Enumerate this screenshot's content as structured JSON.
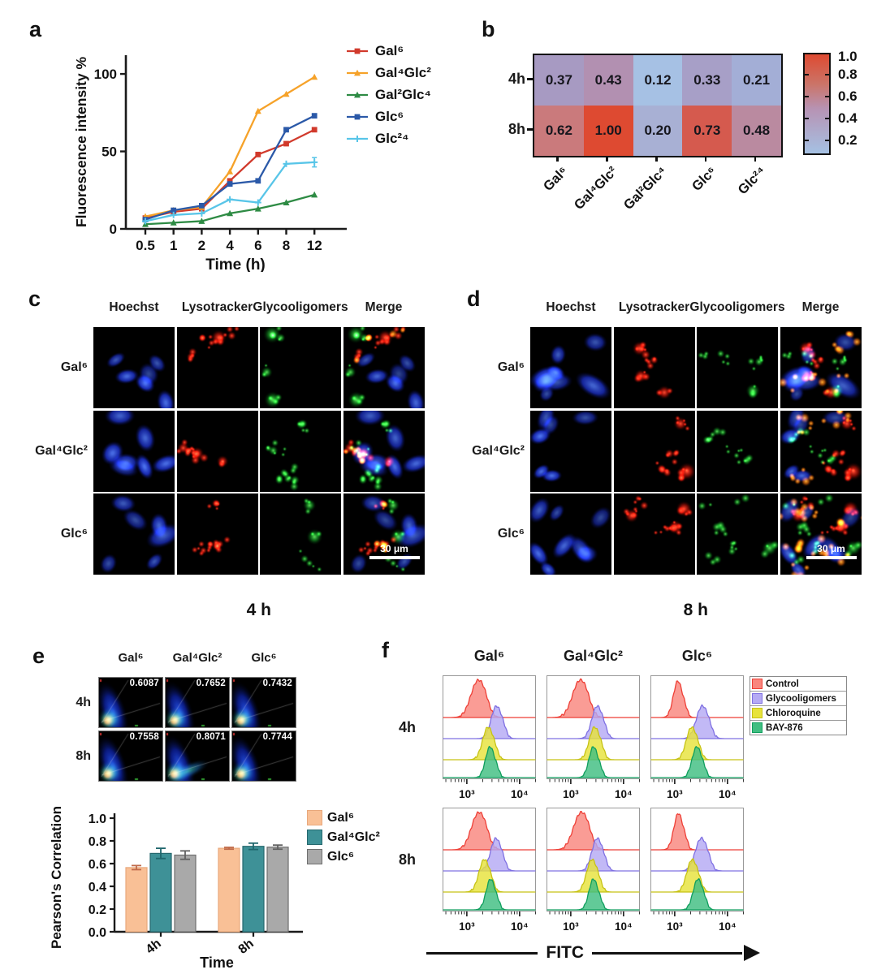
{
  "panel_letters": {
    "a": "a",
    "b": "b",
    "c": "c",
    "d": "d",
    "e": "e",
    "f": "f"
  },
  "chart_data": [
    {
      "id": "a",
      "type": "line",
      "xlabel": "Time (h)",
      "ylabel": "Fluorescence intensity %",
      "categories": [
        "0.5",
        "1",
        "2",
        "4",
        "6",
        "8",
        "12"
      ],
      "ylim": [
        0,
        110
      ],
      "yticks": [
        0,
        50,
        100
      ],
      "legend_position": "right",
      "series": [
        {
          "name": "Gal⁶",
          "color": "#d13a2c",
          "marker": "square",
          "values": [
            7,
            11,
            13,
            31,
            48,
            55,
            64
          ]
        },
        {
          "name": "Gal⁴Glc²",
          "color": "#f6a229",
          "marker": "triangle",
          "values": [
            8,
            12,
            14,
            37,
            76,
            87,
            98
          ]
        },
        {
          "name": "Gal²Glc⁴",
          "color": "#2e8b44",
          "marker": "triangle",
          "values": [
            3,
            4,
            5,
            10,
            13,
            17,
            22
          ]
        },
        {
          "name": "Glc⁶",
          "color": "#2b59a8",
          "marker": "square",
          "values": [
            6,
            12,
            15,
            29,
            31,
            64,
            73
          ]
        },
        {
          "name": "Glc²⁴",
          "color": "#58c5e8",
          "marker": "cross",
          "values": [
            5,
            9,
            10,
            19,
            17,
            42,
            43
          ],
          "yerr_last": 3
        }
      ]
    },
    {
      "id": "b",
      "type": "heatmap",
      "rows": [
        "4h",
        "8h"
      ],
      "columns": [
        "Gal⁶",
        "Gal⁴Glc²",
        "Gal²Glc⁴",
        "Glc⁶",
        "Glc²⁴"
      ],
      "values": [
        [
          0.37,
          0.43,
          0.12,
          0.33,
          0.21
        ],
        [
          0.62,
          1.0,
          0.2,
          0.73,
          0.48
        ]
      ],
      "cell_colors": [
        [
          "#a79ac2",
          "#b290b1",
          "#a6c1e4",
          "#a79fc7",
          "#a3aed6"
        ],
        [
          "#ca7a7c",
          "#de4a31",
          "#a8b0d4",
          "#d55a4e",
          "#ba8aa0"
        ]
      ],
      "colorbar": {
        "ticks": [
          "1.0",
          "0.8",
          "0.6",
          "0.4",
          "0.2"
        ],
        "range": [
          0.1,
          1.0
        ],
        "stops": [
          "#de4a31",
          "#cb7468",
          "#b793b4",
          "#a5c1e3"
        ]
      }
    },
    {
      "id": "e_scatter",
      "type": "heatscatter-grid",
      "columns": [
        "Gal⁶",
        "Gal⁴Glc²",
        "Glc⁶"
      ],
      "rows": [
        "4h",
        "8h"
      ],
      "values": [
        [
          "0.6087",
          "0.7652",
          "0.7432"
        ],
        [
          "0.7558",
          "0.8071",
          "0.7744"
        ]
      ]
    },
    {
      "id": "e_bar",
      "type": "bar",
      "xlabel": "Time",
      "ylabel": "Pearson's Correlation",
      "categories": [
        "4h",
        "8h"
      ],
      "ylim": [
        0,
        1.0
      ],
      "yticks": [
        "0.0",
        "0.2",
        "0.4",
        "0.6",
        "0.8",
        "1.0"
      ],
      "series": [
        {
          "name": "Gal⁶",
          "color": "#f9c096",
          "edge": "#e8a87c",
          "err_color": "#c06a4a",
          "values": [
            0.565,
            0.735
          ],
          "errors": [
            0.018,
            0.008
          ]
        },
        {
          "name": "Gal⁴Glc²",
          "color": "#3e9197",
          "edge": "#26686e",
          "err_color": "#1f666c",
          "values": [
            0.69,
            0.752
          ],
          "errors": [
            0.045,
            0.028
          ]
        },
        {
          "name": "Glc⁶",
          "color": "#a9a9a9",
          "edge": "#6f6f6f",
          "err_color": "#616161",
          "values": [
            0.675,
            0.745
          ],
          "errors": [
            0.037,
            0.018
          ]
        }
      ]
    },
    {
      "id": "f",
      "type": "flow-histograms",
      "columns": [
        "Gal⁶",
        "Gal⁴Glc²",
        "Glc⁶"
      ],
      "rows": [
        "4h",
        "8h"
      ],
      "xlabel": "FITC",
      "xticks": [
        "10³",
        "10⁴"
      ],
      "xlog_range": [
        2.54,
        4.31
      ],
      "series": [
        {
          "name": "Control",
          "fill": "#f9867e",
          "stroke": "#ee3f36"
        },
        {
          "name": "Glycooligomers",
          "fill": "#b5aaf4",
          "stroke": "#7f70e2"
        },
        {
          "name": "Chloroquine",
          "fill": "#e7e33c",
          "stroke": "#c6c214"
        },
        {
          "name": "BAY-876",
          "fill": "#40be81",
          "stroke": "#0f9e5d"
        }
      ],
      "panels": {
        "4h": {
          "Gal⁶": {
            "peaks": [
              3.21,
              3.56,
              3.4,
              3.44
            ],
            "sigmas": [
              0.135,
              0.1,
              0.1,
              0.085
            ]
          },
          "Gal⁴Glc²": {
            "peaks": [
              3.17,
              3.5,
              3.45,
              3.43
            ],
            "sigmas": [
              0.14,
              0.1,
              0.1,
              0.085
            ]
          },
          "Glc⁶": {
            "peaks": [
              3.06,
              3.52,
              3.32,
              3.42
            ],
            "sigmas": [
              0.085,
              0.11,
              0.1,
              0.09
            ]
          }
        },
        "8h": {
          "Gal⁶": {
            "peaks": [
              3.22,
              3.55,
              3.33,
              3.45
            ],
            "sigmas": [
              0.135,
              0.1,
              0.1,
              0.085
            ]
          },
          "Gal⁴Glc²": {
            "peaks": [
              3.19,
              3.5,
              3.4,
              3.43
            ],
            "sigmas": [
              0.14,
              0.1,
              0.1,
              0.085
            ]
          },
          "Glc⁶": {
            "peaks": [
              3.07,
              3.5,
              3.33,
              3.44
            ],
            "sigmas": [
              0.085,
              0.11,
              0.1,
              0.09
            ]
          }
        }
      }
    }
  ],
  "microscopy": {
    "column_headers": [
      "Hoechst",
      "Lysotracker",
      "Glycooligomers",
      "Merge"
    ],
    "row_labels": [
      "Gal⁶",
      "Gal⁴Glc²",
      "Glc⁶"
    ],
    "panel_c_caption": "4 h",
    "panel_d_caption": "8 h",
    "scalebar_text": "30 μm"
  }
}
